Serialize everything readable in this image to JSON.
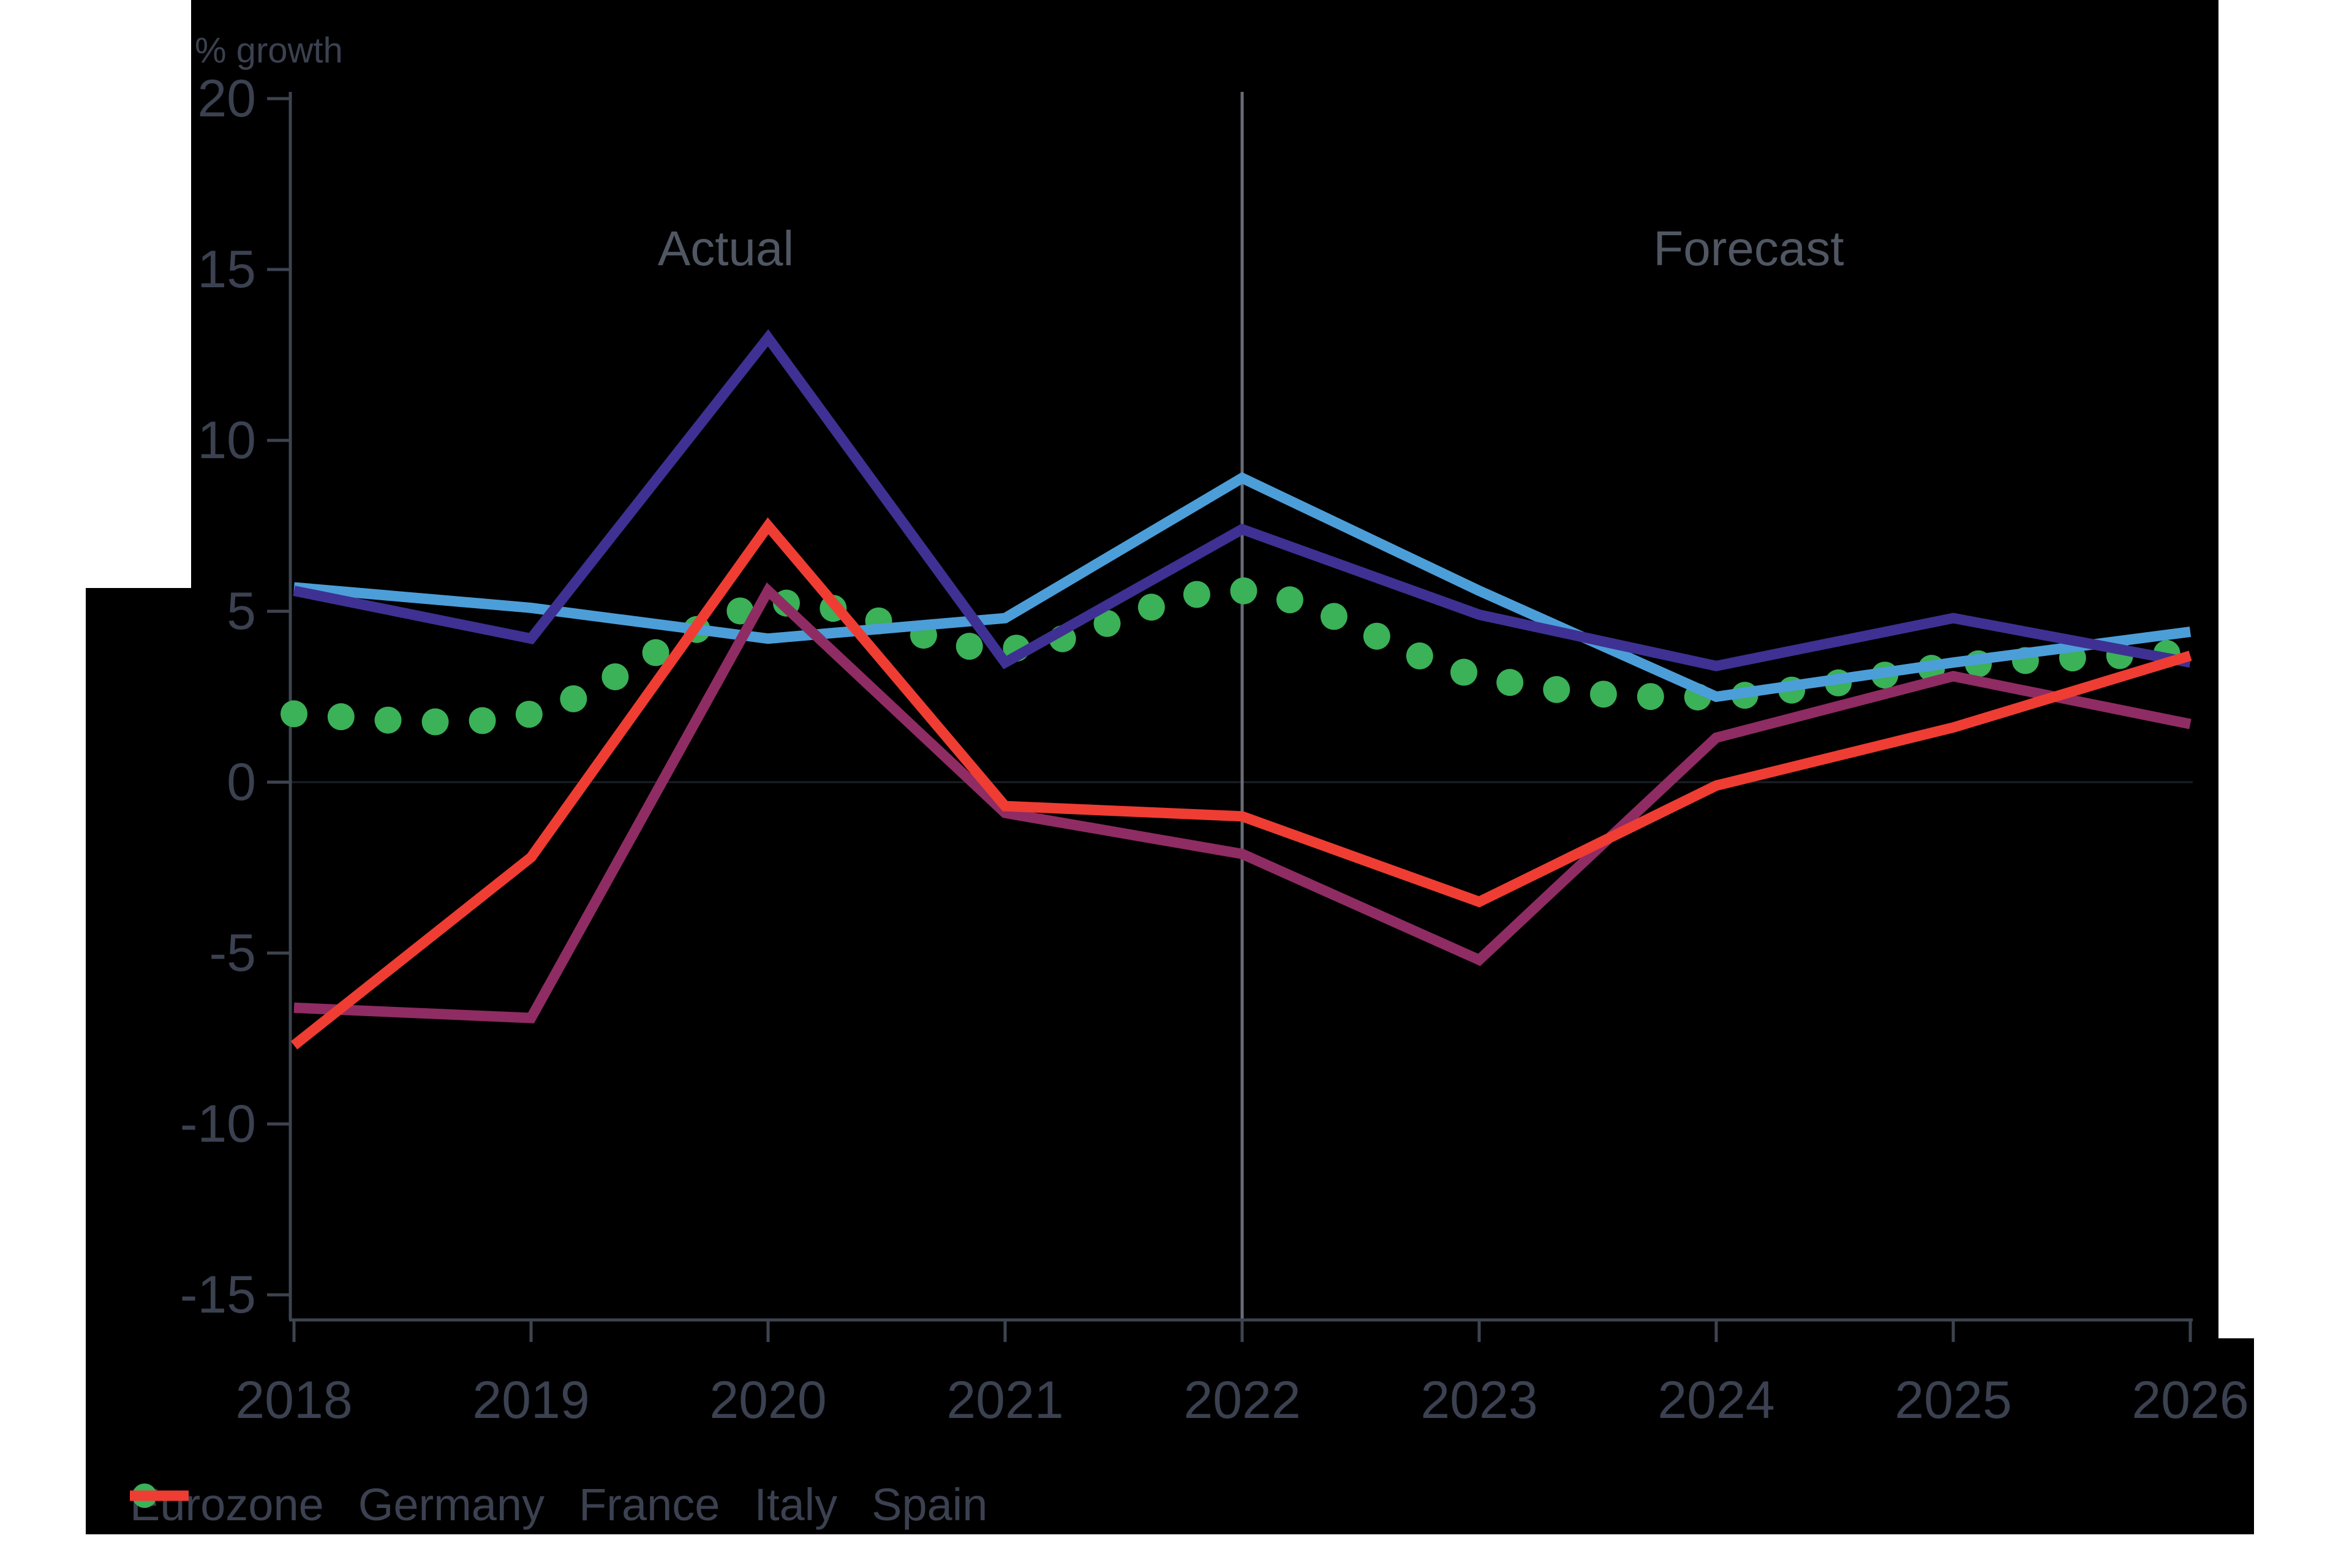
{
  "header": {
    "y_axis_title": "% growth"
  },
  "annotations": {
    "left_region_label": "Actual",
    "right_region_label": "Forecast"
  },
  "colors": {
    "panel_background": "#000000",
    "page_background": "#ffffff",
    "axis": "#3d piccolo4450",
    "axis_line": "#3d4450",
    "tick_text": "#3b4150",
    "region_text": "#505763",
    "divider_line": "#686d76",
    "zero_gridline": "#1b1f26"
  },
  "chart_data": {
    "type": "line",
    "title": "",
    "ylabel": "% growth",
    "xlabel": "",
    "x": [
      2018,
      2019,
      2020,
      2021,
      2022,
      2023,
      2024,
      2025,
      2026
    ],
    "ylim": [
      -15,
      20
    ],
    "yticks": [
      20,
      15,
      10,
      5,
      0,
      -5,
      -10,
      -15
    ],
    "grid": "zero-line only",
    "divider_x": 2022,
    "region_labels": [
      "Actual",
      "Forecast"
    ],
    "legend_position": "bottom-left",
    "series": [
      {
        "name": "Eurozone",
        "color": "#3bb158",
        "style": "dotted",
        "values": [
          2.0,
          2.0,
          5.2,
          3.9,
          5.6,
          3.1,
          2.5,
          3.4,
          3.8
        ]
      },
      {
        "name": "Germany",
        "color": "#4c9ed9",
        "style": "solid",
        "values": [
          5.7,
          5.1,
          4.2,
          4.8,
          8.9,
          5.6,
          2.5,
          3.5,
          4.4
        ]
      },
      {
        "name": "France",
        "color": "#3e3193",
        "style": "solid",
        "values": [
          5.6,
          4.2,
          13.0,
          3.5,
          7.4,
          4.9,
          3.4,
          4.8,
          3.5
        ]
      },
      {
        "name": "Italy",
        "color": "#8f2c63",
        "style": "solid",
        "values": [
          -6.6,
          -6.9,
          5.6,
          -0.9,
          -2.1,
          -5.2,
          1.3,
          3.1,
          1.7
        ]
      },
      {
        "name": "Spain",
        "color": "#ef3d33",
        "style": "solid",
        "values": [
          -7.7,
          -2.2,
          7.5,
          -0.7,
          -1.0,
          -3.5,
          -0.1,
          1.6,
          3.7
        ]
      }
    ]
  }
}
